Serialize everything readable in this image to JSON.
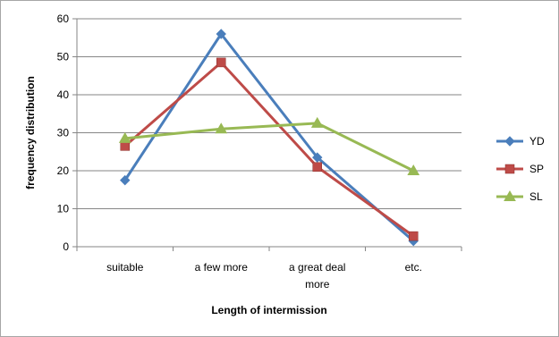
{
  "chart_data": {
    "type": "line",
    "title": "",
    "xlabel": "Length of intermission",
    "ylabel": "frequency distribution",
    "categories": [
      [
        "suitable"
      ],
      [
        "a few more"
      ],
      [
        "a great deal",
        "more"
      ],
      [
        "etc."
      ]
    ],
    "ylim": [
      0,
      60
    ],
    "yticks": [
      0,
      10,
      20,
      30,
      40,
      50,
      60
    ],
    "grid": true,
    "legend_position": "right",
    "series": [
      {
        "name": "YD",
        "values": [
          17.5,
          56,
          23.5,
          1.5
        ],
        "color": "#4a7ebb",
        "marker": "diamond"
      },
      {
        "name": "SP",
        "values": [
          26.5,
          48.5,
          21,
          2.8
        ],
        "color": "#be4b48",
        "marker": "square"
      },
      {
        "name": "SL",
        "values": [
          28.5,
          31,
          32.5,
          20
        ],
        "color": "#98b954",
        "marker": "triangle"
      }
    ]
  }
}
